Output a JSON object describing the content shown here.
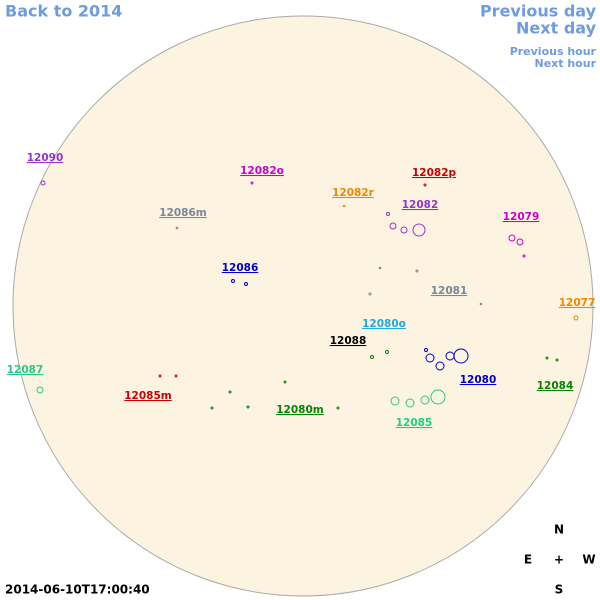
{
  "header": {
    "back": "Back to 2014",
    "previous_day": "Previous day",
    "next_day": "Next day",
    "previous_hour": "Previous hour",
    "next_hour": "Next hour"
  },
  "regions": [
    {
      "label": "12090",
      "color": "#9933cc"
    },
    {
      "label": "12082o",
      "color": "#cc00cc"
    },
    {
      "label": "12082p",
      "color": "#cc0000"
    },
    {
      "label": "12082r",
      "color": "#ee8800"
    },
    {
      "label": "12082",
      "color": "#9933cc"
    },
    {
      "label": "12086m",
      "color": "#778899"
    },
    {
      "label": "12079",
      "color": "#cc00cc"
    },
    {
      "label": "12086",
      "color": "#0000cc"
    },
    {
      "label": "12081",
      "color": "#778899"
    },
    {
      "label": "12077",
      "color": "#ee8800"
    },
    {
      "label": "12080o",
      "color": "#22aadd"
    },
    {
      "label": "12088",
      "color": "#000000"
    },
    {
      "label": "12087",
      "color": "#22cc88"
    },
    {
      "label": "12080",
      "color": "#0000cc"
    },
    {
      "label": "12084",
      "color": "#008800"
    },
    {
      "label": "12085m",
      "color": "#cc0000"
    },
    {
      "label": "12080m",
      "color": "#008800"
    },
    {
      "label": "12085",
      "color": "#22cc88"
    }
  ],
  "compass": {
    "north": "N",
    "east": "E",
    "center": "+",
    "west": "W",
    "south": "S"
  },
  "timestamp": "2014-06-10T17:00:40"
}
